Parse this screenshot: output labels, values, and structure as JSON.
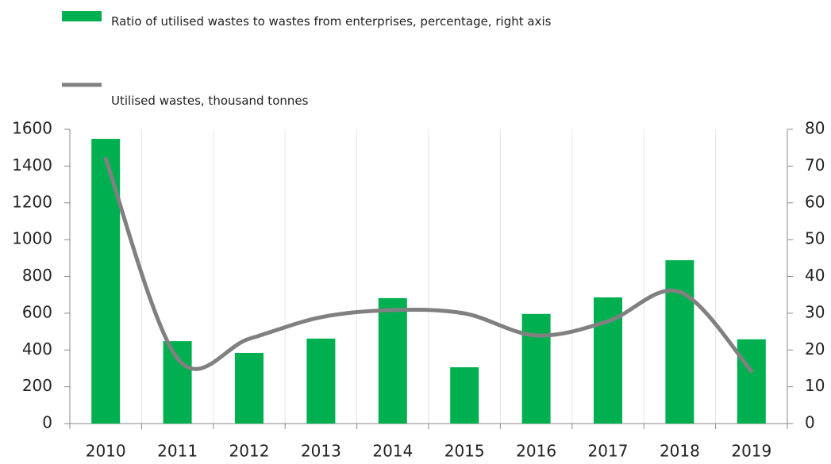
{
  "chart_data": {
    "type": "bar-line",
    "categories": [
      "2010",
      "2011",
      "2012",
      "2013",
      "2014",
      "2015",
      "2016",
      "2017",
      "2018",
      "2019"
    ],
    "series": [
      {
        "name": "Ratio of utilised wastes to wastes from enterprises, percentage, right axis",
        "type": "bar",
        "color": "#00b050",
        "axis": "y2",
        "values": [
          77.4,
          22.4,
          19.2,
          23.1,
          34.1,
          15.3,
          29.8,
          34.3,
          44.4,
          22.9
        ]
      },
      {
        "name": "Utilised wastes, thousand tonnes",
        "type": "line",
        "color": "#808080",
        "axis": "y",
        "values": [
          1440,
          354,
          461,
          578,
          617,
          599,
          479,
          556,
          716,
          285
        ]
      }
    ],
    "ylim": [
      0,
      1600
    ],
    "yticks": [
      0,
      200,
      400,
      600,
      800,
      1000,
      1200,
      1400,
      1600
    ],
    "y2lim": [
      0,
      80
    ],
    "y2ticks": [
      0,
      10,
      20,
      30,
      40,
      50,
      60,
      70,
      80
    ],
    "grid": true
  }
}
